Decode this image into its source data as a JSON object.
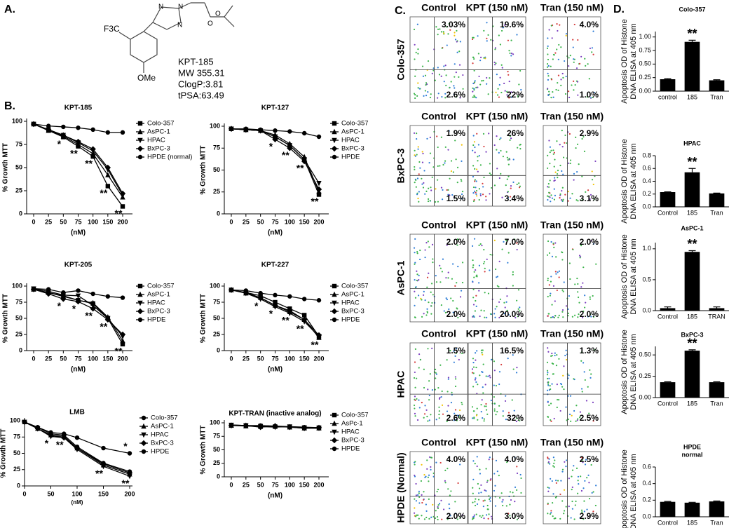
{
  "panel_labels": [
    "A.",
    "B.",
    "C.",
    "D."
  ],
  "structure": {
    "substituent_left": "F3C",
    "substituent_bottom": "OMe",
    "ring_atoms": [
      "N",
      "N",
      "N"
    ],
    "ester_atoms": [
      "O",
      "O"
    ],
    "properties": [
      "KPT-185",
      "MW 355.31",
      "ClogP:3.81",
      "tPSA:63.49"
    ]
  },
  "flow": {
    "columns": [
      "Control",
      "KPT (150 nM)",
      "Tran (150 nM)"
    ],
    "rows": [
      {
        "label": "Colo-357",
        "upper": [
          "3.03%",
          "19.6%",
          "4.0%"
        ],
        "lower": [
          "2.6%",
          "22%",
          "1.0%"
        ]
      },
      {
        "label": "BxPC-3",
        "upper": [
          "1.9%",
          "26%",
          "2.9%"
        ],
        "lower": [
          "1.5%",
          "3.4%",
          "3.1%"
        ]
      },
      {
        "label": "AsPC-1",
        "upper": [
          "2.0%",
          "7.0%",
          "2.0%"
        ],
        "lower": [
          "2.0%",
          "20.0%",
          "2.0%"
        ]
      },
      {
        "label": "HPAC",
        "upper": [
          "1.5%",
          "16.5%",
          "1.3%"
        ],
        "lower": [
          "2.6%",
          "32%",
          "2.5%"
        ]
      },
      {
        "label": "HPDE (Normal)",
        "upper": [
          "4.0%",
          "4.0%",
          "2.5%"
        ],
        "lower": [
          "2.0%",
          "3.0%",
          "2.9%"
        ]
      }
    ]
  },
  "chart_data": [
    {
      "type": "line",
      "title": "KPT-185",
      "categories": [
        "0",
        "25",
        "50",
        "75",
        "100",
        "150",
        "200"
      ],
      "xlabel": "(nM)",
      "ylabel": "% Growth MTT",
      "ylim": [
        0,
        100
      ],
      "yticks": [
        0,
        25,
        50,
        75,
        100
      ],
      "series": [
        {
          "name": "Colo-357",
          "color": "#000000",
          "marker": "square",
          "values": [
            97,
            90,
            83,
            73,
            62,
            30,
            8
          ]
        },
        {
          "name": "AsPC-1",
          "color": "#000000",
          "marker": "triangle",
          "values": [
            97,
            90,
            84,
            75,
            65,
            42,
            18
          ]
        },
        {
          "name": "HPAC",
          "color": "#000000",
          "marker": "triangle-down",
          "values": [
            97,
            91,
            85,
            77,
            68,
            48,
            20
          ]
        },
        {
          "name": "BxPC-3",
          "color": "#000000",
          "marker": "diamond",
          "values": [
            97,
            91,
            85,
            78,
            70,
            50,
            22
          ]
        },
        {
          "name": "HPDE  (normal)",
          "color": "#000000",
          "marker": "circle",
          "values": [
            97,
            95,
            94,
            93,
            91,
            88,
            88
          ]
        }
      ],
      "annotations": [
        {
          "text": "*",
          "category": "50"
        },
        {
          "text": "**",
          "category": "75"
        },
        {
          "text": "**",
          "category": "100"
        },
        {
          "text": "**",
          "category": "150"
        },
        {
          "text": "**",
          "category": "200"
        }
      ]
    },
    {
      "type": "line",
      "title": "KPT-127",
      "categories": [
        "0",
        "25",
        "50",
        "75",
        "100",
        "150",
        "200"
      ],
      "xlabel": "(nM)",
      "ylabel": "% Growth MTT",
      "ylim": [
        0,
        100
      ],
      "yticks": [
        0,
        25,
        50,
        75,
        100
      ],
      "series": [
        {
          "name": "Colo-357",
          "color": "#000000",
          "marker": "square",
          "values": [
            97,
            96,
            95,
            88,
            78,
            62,
            22
          ]
        },
        {
          "name": "AsPC-1",
          "color": "#000000",
          "marker": "triangle",
          "values": [
            97,
            96,
            95,
            90,
            80,
            65,
            25
          ]
        },
        {
          "name": "HPAC",
          "color": "#000000",
          "marker": "triangle-down",
          "values": [
            97,
            96,
            95,
            88,
            78,
            62,
            35
          ]
        },
        {
          "name": "BxPC-3",
          "color": "#000000",
          "marker": "diamond",
          "values": [
            97,
            96,
            95,
            85,
            75,
            60,
            28
          ]
        },
        {
          "name": "HPDE",
          "color": "#000000",
          "marker": "circle",
          "values": [
            97,
            97,
            96,
            95,
            94,
            92,
            88
          ]
        }
      ],
      "annotations": [
        {
          "text": "*",
          "category": "75"
        },
        {
          "text": "**",
          "category": "100"
        },
        {
          "text": "**",
          "category": "150"
        },
        {
          "text": "**",
          "category": "200"
        }
      ]
    },
    {
      "type": "line",
      "title": "KPT-205",
      "categories": [
        "0",
        "25",
        "50",
        "75",
        "100",
        "150",
        "200"
      ],
      "xlabel": "(nM)",
      "ylabel": "% Growth MTT",
      "ylim": [
        0,
        100
      ],
      "yticks": [
        0,
        25,
        50,
        75,
        100
      ],
      "series": [
        {
          "name": "Colo-357",
          "color": "#000000",
          "marker": "square",
          "values": [
            95,
            90,
            85,
            78,
            73,
            50,
            10
          ]
        },
        {
          "name": "AsPC-1",
          "color": "#000000",
          "marker": "triangle",
          "values": [
            95,
            90,
            84,
            78,
            74,
            52,
            15
          ]
        },
        {
          "name": "HPAC",
          "color": "#000000",
          "marker": "triangle-down",
          "values": [
            96,
            92,
            86,
            85,
            70,
            50,
            22
          ]
        },
        {
          "name": "BxPC-3",
          "color": "#000000",
          "marker": "diamond",
          "values": [
            95,
            88,
            80,
            76,
            65,
            48,
            25
          ]
        },
        {
          "name": "HPDE",
          "color": "#000000",
          "marker": "circle",
          "values": [
            96,
            95,
            90,
            93,
            88,
            84,
            82
          ]
        }
      ],
      "annotations": [
        {
          "text": "*",
          "category": "50"
        },
        {
          "text": "*",
          "category": "75"
        },
        {
          "text": "**",
          "category": "100"
        },
        {
          "text": "**",
          "category": "150"
        },
        {
          "text": "**",
          "category": "200"
        }
      ]
    },
    {
      "type": "line",
      "title": "KPT-227",
      "categories": [
        "0",
        "25",
        "50",
        "75",
        "100",
        "150",
        "200"
      ],
      "xlabel": "(nM)",
      "ylabel": "% Growth MTT",
      "ylim": [
        0,
        100
      ],
      "yticks": [
        0,
        25,
        50,
        75,
        100
      ],
      "series": [
        {
          "name": "Colo-357",
          "color": "#000000",
          "marker": "square",
          "values": [
            94,
            90,
            85,
            75,
            65,
            55,
            22
          ]
        },
        {
          "name": "AsPC-1",
          "color": "#000000",
          "marker": "triangle",
          "values": [
            94,
            89,
            82,
            70,
            60,
            48,
            20
          ]
        },
        {
          "name": "HPAC",
          "color": "#000000",
          "marker": "triangle-down",
          "values": [
            94,
            89,
            80,
            68,
            58,
            45,
            22
          ]
        },
        {
          "name": "BxPC-3",
          "color": "#000000",
          "marker": "diamond",
          "values": [
            94,
            90,
            82,
            70,
            62,
            48,
            24
          ]
        },
        {
          "name": "HPDE",
          "color": "#000000",
          "marker": "circle",
          "values": [
            94,
            93,
            89,
            86,
            84,
            80,
            78
          ]
        }
      ],
      "annotations": [
        {
          "text": "*",
          "category": "50"
        },
        {
          "text": "*",
          "category": "75"
        },
        {
          "text": "**",
          "category": "100"
        },
        {
          "text": "**",
          "category": "150"
        },
        {
          "text": "**",
          "category": "200"
        }
      ]
    },
    {
      "type": "line",
      "title": "LMB",
      "x": [
        0,
        25,
        50,
        75,
        100,
        150,
        200
      ],
      "xlim": [
        0,
        200
      ],
      "xticks": [
        0,
        50,
        100,
        150,
        200
      ],
      "xlabel": "(nM)",
      "ylabel": "% Growth MTT",
      "ylim": [
        0,
        100
      ],
      "yticks": [
        0,
        25,
        50,
        75,
        100
      ],
      "series": [
        {
          "name": "Colo-357",
          "color": "#000000",
          "marker": "circle",
          "values": [
            98,
            90,
            82,
            80,
            74,
            58,
            50
          ]
        },
        {
          "name": "AsPC-1",
          "color": "#000000",
          "marker": "triangle",
          "values": [
            98,
            88,
            78,
            76,
            58,
            32,
            18
          ]
        },
        {
          "name": "HPAC",
          "color": "#000000",
          "marker": "triangle-down",
          "values": [
            98,
            88,
            76,
            74,
            56,
            30,
            15
          ]
        },
        {
          "name": "BxPC-3",
          "color": "#000000",
          "marker": "diamond",
          "values": [
            98,
            88,
            78,
            74,
            58,
            34,
            20
          ]
        },
        {
          "name": "HPDE",
          "color": "#000000",
          "marker": "circle",
          "values": [
            98,
            90,
            80,
            78,
            60,
            35,
            22
          ]
        }
      ],
      "annotations": [
        {
          "text": "*",
          "x": 50
        },
        {
          "text": "**",
          "x": 75
        },
        {
          "text": "**",
          "x": 150
        },
        {
          "text": "*",
          "x": 200,
          "side": "above"
        },
        {
          "text": "**",
          "x": 200
        }
      ]
    },
    {
      "type": "line",
      "title": "KPT-TRAN (inactive analog)",
      "categories": [
        "0",
        "25",
        "50",
        "75",
        "100",
        "150",
        "200"
      ],
      "xlabel": "(nM)",
      "ylabel": "% Growth  MTT",
      "ylim": [
        0,
        100
      ],
      "yticks": [
        0,
        25,
        50,
        75,
        100
      ],
      "series": [
        {
          "name": "Colo-357",
          "color": "#000000",
          "marker": "square",
          "values": [
            95,
            95,
            94,
            93,
            92,
            91,
            91
          ]
        },
        {
          "name": "AsPc-1",
          "color": "#000000",
          "marker": "triangle",
          "values": [
            95,
            94,
            93,
            94,
            92,
            90,
            90
          ]
        },
        {
          "name": "HPAC",
          "color": "#000000",
          "marker": "triangle-down",
          "values": [
            96,
            95,
            93,
            92,
            93,
            91,
            90
          ]
        },
        {
          "name": "BxPC-3",
          "color": "#000000",
          "marker": "diamond",
          "values": [
            95,
            95,
            92,
            94,
            92,
            90,
            91
          ]
        },
        {
          "name": "HPDE",
          "color": "#000000",
          "marker": "circle",
          "values": [
            96,
            95,
            95,
            94,
            93,
            92,
            91
          ]
        }
      ],
      "annotations": []
    },
    {
      "type": "bar",
      "title": "Colo-357",
      "categories": [
        "control",
        "185",
        "Tran"
      ],
      "values": [
        0.22,
        0.91,
        0.2
      ],
      "errors": [
        0.01,
        0.03,
        0.01
      ],
      "color": "#000000",
      "ylim": [
        0,
        1.1
      ],
      "yticks": [
        {
          "value": 0,
          "label": "0.00"
        },
        {
          "value": 0.25,
          "label": "0.25"
        },
        {
          "value": 0.5,
          "label": "0.50"
        },
        {
          "value": 0.75,
          "label": "0.75"
        },
        {
          "value": 1,
          "label": "1.00"
        }
      ],
      "ylabel": [
        "Apoptosis OD of Histone",
        "DNA ELISA at 405 nm"
      ],
      "annotations": [
        {
          "text": "**",
          "category": "185"
        }
      ]
    },
    {
      "type": "bar",
      "title": "HPAC",
      "categories": [
        "Control",
        "185",
        "Tran"
      ],
      "values": [
        0.23,
        0.54,
        0.21
      ],
      "errors": [
        0.005,
        0.06,
        0.005
      ],
      "color": "#000000",
      "ylim": [
        0,
        0.8
      ],
      "yticks": [
        {
          "value": 0,
          "label": "0.0"
        },
        0.2,
        0.4,
        0.6,
        0.8
      ],
      "ylabel": [
        "Apoptosis OD of Histone",
        "DNA ELISA at 405 nm"
      ],
      "annotations": [
        {
          "text": "**",
          "category": "185"
        }
      ]
    },
    {
      "type": "bar",
      "title": "AsPC-1",
      "categories": [
        "Control",
        "185",
        "TRAN"
      ],
      "values": [
        0.04,
        0.95,
        0.04
      ],
      "errors": [
        0.02,
        0.02,
        0.02
      ],
      "color": "#000000",
      "ylim": [
        0,
        1.1
      ],
      "yticks": [
        {
          "value": 0,
          "label": "0.0"
        },
        0.5,
        {
          "value": 1,
          "label": "1.0"
        }
      ],
      "ylabel": [
        "Apoptosis OD of Histone",
        "DNA ELISA at 405 nm"
      ],
      "annotations": [
        {
          "text": "**",
          "category": "185"
        }
      ]
    },
    {
      "type": "bar",
      "title": "BxPC-3",
      "categories": [
        "Control",
        "185",
        "Tran"
      ],
      "values": [
        0.18,
        0.55,
        0.18
      ],
      "errors": [
        0.005,
        0.01,
        0.005
      ],
      "color": "#000000",
      "ylim": [
        0,
        0.6
      ],
      "yticks": [
        {
          "value": 0,
          "label": "0.00"
        },
        0.25,
        {
          "value": 0.5,
          "label": "0.50"
        }
      ],
      "ylabel": [
        "Apoptosis OD of Histone",
        "DNA ELISA at 405 nm"
      ],
      "annotations": [
        {
          "text": "**",
          "category": "185"
        }
      ]
    },
    {
      "type": "bar",
      "title": "HPDE",
      "subtitle": "normal",
      "categories": [
        "Control",
        "185",
        "Tran"
      ],
      "values": [
        0.18,
        0.17,
        0.185
      ],
      "errors": [
        0.005,
        0.005,
        0.005
      ],
      "color": "#000000",
      "ylim": [
        0,
        0.6
      ],
      "yticks": [
        {
          "value": 0,
          "label": "0.0"
        },
        0.2,
        0.4,
        0.6
      ],
      "ylabel": [
        "Apoptosis OD of Histone",
        "DNA ELISA at 405 nm"
      ],
      "annotations": []
    }
  ]
}
